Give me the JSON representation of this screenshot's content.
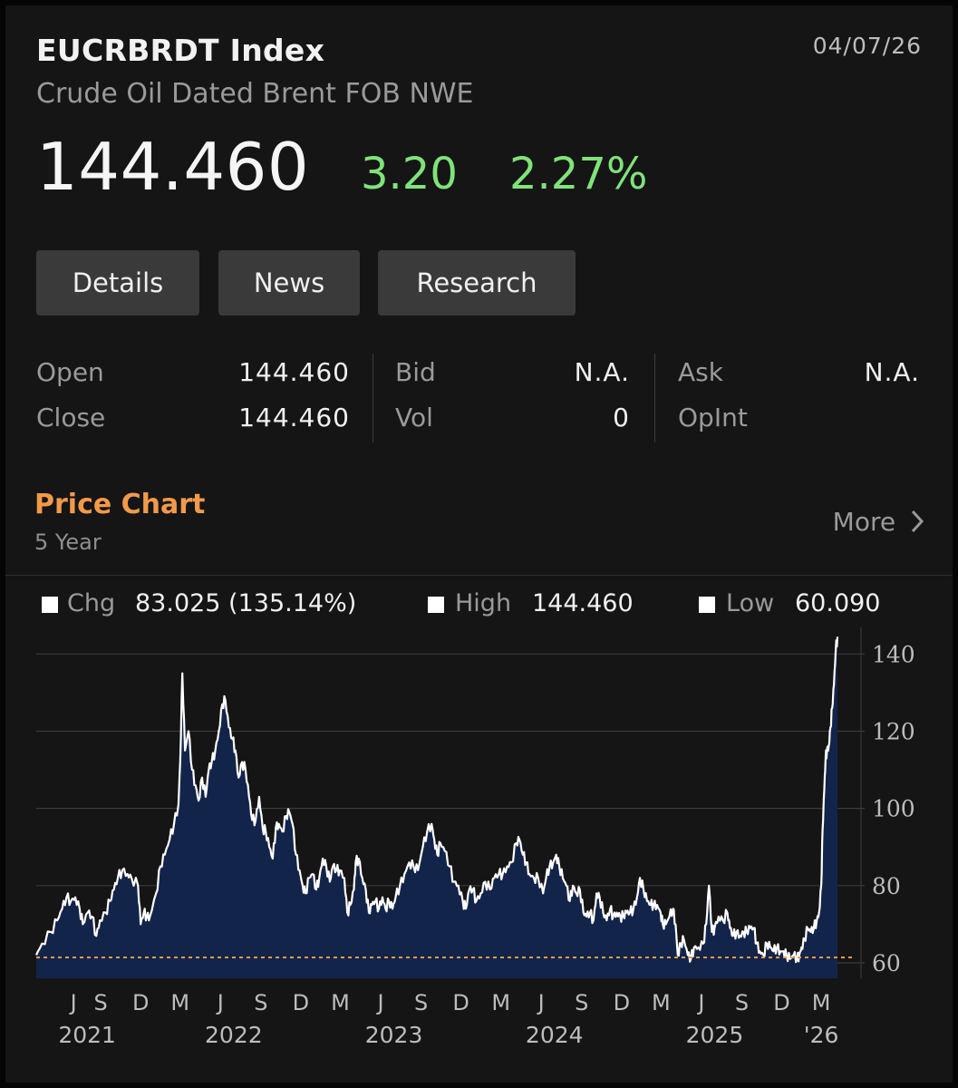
{
  "header": {
    "ticker": "EUCRBRDT Index",
    "date": "04/07/26",
    "description": "Crude Oil Dated Brent FOB NWE",
    "last_price": "144.460",
    "net_change": "3.20",
    "pct_change": "2.27%",
    "change_color": "#7fe37a"
  },
  "buttons": {
    "details": "Details",
    "news": "News",
    "research": "Research"
  },
  "quote": {
    "open_label": "Open",
    "open_value": "144.460",
    "close_label": "Close",
    "close_value": "144.460",
    "bid_label": "Bid",
    "bid_value": "N.A.",
    "vol_label": "Vol",
    "vol_value": "0",
    "ask_label": "Ask",
    "ask_value": "N.A.",
    "opint_label": "OpInt",
    "opint_value": ""
  },
  "price_chart": {
    "title": "Price Chart",
    "period": "5 Year",
    "more_label": "More",
    "accent_color": "#f29a4a"
  },
  "chart_stats": {
    "chg_label": "Chg",
    "chg_value": "83.025 (135.14%)",
    "high_label": "High",
    "high_value": "144.460",
    "low_label": "Low",
    "low_value": "60.090"
  },
  "chart_data": {
    "type": "area",
    "title": "",
    "xlabel": "",
    "ylabel": "",
    "ylim": [
      56,
      145
    ],
    "y_ticks": [
      140,
      120,
      100,
      80,
      60
    ],
    "grid": true,
    "baseline_value": 61.4,
    "colors": {
      "line": "#ffffff",
      "fill": "#13244a",
      "baseline": "#f29a4a"
    },
    "x_month_ticks": [
      {
        "label": "J",
        "date": "2021-07-01"
      },
      {
        "label": "S",
        "date": "2021-09-01"
      },
      {
        "label": "D",
        "date": "2021-12-01"
      },
      {
        "label": "M",
        "date": "2022-03-01"
      },
      {
        "label": "J",
        "date": "2022-06-01"
      },
      {
        "label": "S",
        "date": "2022-09-01"
      },
      {
        "label": "D",
        "date": "2022-12-01"
      },
      {
        "label": "M",
        "date": "2023-03-01"
      },
      {
        "label": "J",
        "date": "2023-06-01"
      },
      {
        "label": "S",
        "date": "2023-09-01"
      },
      {
        "label": "D",
        "date": "2023-12-01"
      },
      {
        "label": "M",
        "date": "2024-03-01"
      },
      {
        "label": "J",
        "date": "2024-06-01"
      },
      {
        "label": "S",
        "date": "2024-09-01"
      },
      {
        "label": "D",
        "date": "2024-12-01"
      },
      {
        "label": "M",
        "date": "2025-03-01"
      },
      {
        "label": "J",
        "date": "2025-06-01"
      },
      {
        "label": "S",
        "date": "2025-09-01"
      },
      {
        "label": "D",
        "date": "2025-12-01"
      },
      {
        "label": "M",
        "date": "2026-03-01"
      }
    ],
    "x_year_ticks": [
      {
        "label": "2021",
        "date": "2021-08-01"
      },
      {
        "label": "2022",
        "date": "2022-07-01"
      },
      {
        "label": "2023",
        "date": "2023-07-01"
      },
      {
        "label": "2024",
        "date": "2024-07-01"
      },
      {
        "label": "2025",
        "date": "2025-07-01"
      },
      {
        "label": "'26",
        "date": "2026-03-01"
      }
    ],
    "series": [
      {
        "points": [
          [
            "2021-04-07",
            62
          ],
          [
            "2021-04-20",
            65
          ],
          [
            "2021-05-10",
            68
          ],
          [
            "2021-05-25",
            71
          ],
          [
            "2021-06-05",
            74
          ],
          [
            "2021-06-15",
            77
          ],
          [
            "2021-06-25",
            76
          ],
          [
            "2021-07-05",
            77
          ],
          [
            "2021-07-15",
            74
          ],
          [
            "2021-07-22",
            70
          ],
          [
            "2021-08-02",
            73
          ],
          [
            "2021-08-12",
            72
          ],
          [
            "2021-08-22",
            67
          ],
          [
            "2021-08-30",
            71
          ],
          [
            "2021-09-12",
            73
          ],
          [
            "2021-09-22",
            76
          ],
          [
            "2021-10-01",
            79
          ],
          [
            "2021-10-10",
            82
          ],
          [
            "2021-10-20",
            84
          ],
          [
            "2021-11-01",
            83
          ],
          [
            "2021-11-10",
            82
          ],
          [
            "2021-11-25",
            80
          ],
          [
            "2021-12-01",
            70
          ],
          [
            "2021-12-08",
            73
          ],
          [
            "2021-12-15",
            72
          ],
          [
            "2021-12-22",
            72
          ],
          [
            "2022-01-05",
            78
          ],
          [
            "2022-01-15",
            85
          ],
          [
            "2022-01-25",
            88
          ],
          [
            "2022-02-05",
            92
          ],
          [
            "2022-02-15",
            96
          ],
          [
            "2022-02-25",
            101
          ],
          [
            "2022-03-01",
            112
          ],
          [
            "2022-03-06",
            135
          ],
          [
            "2022-03-12",
            115
          ],
          [
            "2022-03-20",
            120
          ],
          [
            "2022-03-28",
            110
          ],
          [
            "2022-04-05",
            106
          ],
          [
            "2022-04-12",
            102
          ],
          [
            "2022-04-20",
            108
          ],
          [
            "2022-04-28",
            103
          ],
          [
            "2022-05-05",
            110
          ],
          [
            "2022-05-12",
            112
          ],
          [
            "2022-05-20",
            115
          ],
          [
            "2022-05-28",
            120
          ],
          [
            "2022-06-05",
            127
          ],
          [
            "2022-06-12",
            128
          ],
          [
            "2022-06-20",
            121
          ],
          [
            "2022-06-28",
            118
          ],
          [
            "2022-07-05",
            115
          ],
          [
            "2022-07-12",
            108
          ],
          [
            "2022-07-20",
            112
          ],
          [
            "2022-07-28",
            110
          ],
          [
            "2022-08-05",
            103
          ],
          [
            "2022-08-12",
            97
          ],
          [
            "2022-08-20",
            97
          ],
          [
            "2022-08-28",
            103
          ],
          [
            "2022-09-05",
            95
          ],
          [
            "2022-09-12",
            94
          ],
          [
            "2022-09-20",
            90
          ],
          [
            "2022-09-28",
            87
          ],
          [
            "2022-10-05",
            95
          ],
          [
            "2022-10-12",
            96
          ],
          [
            "2022-10-20",
            94
          ],
          [
            "2022-10-28",
            98
          ],
          [
            "2022-11-05",
            99
          ],
          [
            "2022-11-12",
            96
          ],
          [
            "2022-11-20",
            88
          ],
          [
            "2022-11-28",
            84
          ],
          [
            "2022-12-05",
            80
          ],
          [
            "2022-12-12",
            78
          ],
          [
            "2022-12-20",
            82
          ],
          [
            "2022-12-28",
            83
          ],
          [
            "2023-01-05",
            79
          ],
          [
            "2023-01-12",
            82
          ],
          [
            "2023-01-20",
            87
          ],
          [
            "2023-01-28",
            85
          ],
          [
            "2023-02-05",
            81
          ],
          [
            "2023-02-12",
            85
          ],
          [
            "2023-02-20",
            84
          ],
          [
            "2023-02-28",
            84
          ],
          [
            "2023-03-10",
            82
          ],
          [
            "2023-03-17",
            73
          ],
          [
            "2023-03-24",
            75
          ],
          [
            "2023-04-01",
            79
          ],
          [
            "2023-04-05",
            86
          ],
          [
            "2023-04-12",
            87
          ],
          [
            "2023-04-20",
            82
          ],
          [
            "2023-04-28",
            79
          ],
          [
            "2023-05-05",
            73
          ],
          [
            "2023-05-12",
            75
          ],
          [
            "2023-05-20",
            76
          ],
          [
            "2023-05-28",
            74
          ],
          [
            "2023-06-05",
            77
          ],
          [
            "2023-06-12",
            74
          ],
          [
            "2023-06-20",
            76
          ],
          [
            "2023-06-28",
            74
          ],
          [
            "2023-07-05",
            77
          ],
          [
            "2023-07-15",
            80
          ],
          [
            "2023-07-25",
            83
          ],
          [
            "2023-08-05",
            86
          ],
          [
            "2023-08-15",
            85
          ],
          [
            "2023-08-25",
            84
          ],
          [
            "2023-09-05",
            90
          ],
          [
            "2023-09-15",
            94
          ],
          [
            "2023-09-25",
            96
          ],
          [
            "2023-10-01",
            92
          ],
          [
            "2023-10-08",
            88
          ],
          [
            "2023-10-15",
            91
          ],
          [
            "2023-10-25",
            89
          ],
          [
            "2023-11-05",
            85
          ],
          [
            "2023-11-15",
            81
          ],
          [
            "2023-11-25",
            80
          ],
          [
            "2023-12-05",
            76
          ],
          [
            "2023-12-12",
            74
          ],
          [
            "2023-12-20",
            79
          ],
          [
            "2023-12-28",
            79
          ],
          [
            "2024-01-05",
            76
          ],
          [
            "2024-01-15",
            78
          ],
          [
            "2024-01-25",
            81
          ],
          [
            "2024-02-05",
            79
          ],
          [
            "2024-02-15",
            82
          ],
          [
            "2024-02-25",
            83
          ],
          [
            "2024-03-05",
            83
          ],
          [
            "2024-03-15",
            85
          ],
          [
            "2024-03-25",
            86
          ],
          [
            "2024-04-05",
            91
          ],
          [
            "2024-04-12",
            92
          ],
          [
            "2024-04-20",
            88
          ],
          [
            "2024-04-28",
            86
          ],
          [
            "2024-05-05",
            83
          ],
          [
            "2024-05-15",
            82
          ],
          [
            "2024-05-25",
            82
          ],
          [
            "2024-06-05",
            78
          ],
          [
            "2024-06-12",
            82
          ],
          [
            "2024-06-20",
            85
          ],
          [
            "2024-06-28",
            86
          ],
          [
            "2024-07-05",
            88
          ],
          [
            "2024-07-12",
            85
          ],
          [
            "2024-07-20",
            82
          ],
          [
            "2024-07-28",
            80
          ],
          [
            "2024-08-05",
            76
          ],
          [
            "2024-08-12",
            80
          ],
          [
            "2024-08-20",
            78
          ],
          [
            "2024-08-28",
            79
          ],
          [
            "2024-09-05",
            73
          ],
          [
            "2024-09-12",
            72
          ],
          [
            "2024-09-20",
            73
          ],
          [
            "2024-09-28",
            71
          ],
          [
            "2024-10-05",
            78
          ],
          [
            "2024-10-12",
            77
          ],
          [
            "2024-10-20",
            73
          ],
          [
            "2024-10-28",
            71
          ],
          [
            "2024-11-05",
            74
          ],
          [
            "2024-11-12",
            72
          ],
          [
            "2024-11-20",
            73
          ],
          [
            "2024-11-28",
            72
          ],
          [
            "2024-12-05",
            72
          ],
          [
            "2024-12-12",
            73
          ],
          [
            "2024-12-20",
            73
          ],
          [
            "2024-12-28",
            74
          ],
          [
            "2025-01-05",
            77
          ],
          [
            "2025-01-12",
            82
          ],
          [
            "2025-01-20",
            79
          ],
          [
            "2025-01-28",
            76
          ],
          [
            "2025-02-05",
            75
          ],
          [
            "2025-02-12",
            75
          ],
          [
            "2025-02-20",
            75
          ],
          [
            "2025-02-28",
            73
          ],
          [
            "2025-03-05",
            70
          ],
          [
            "2025-03-12",
            70
          ],
          [
            "2025-03-20",
            72
          ],
          [
            "2025-03-28",
            74
          ],
          [
            "2025-04-03",
            70
          ],
          [
            "2025-04-08",
            62
          ],
          [
            "2025-04-15",
            65
          ],
          [
            "2025-04-22",
            66
          ],
          [
            "2025-05-01",
            62
          ],
          [
            "2025-05-08",
            61
          ],
          [
            "2025-05-15",
            64
          ],
          [
            "2025-05-25",
            64
          ],
          [
            "2025-06-05",
            65
          ],
          [
            "2025-06-12",
            70
          ],
          [
            "2025-06-18",
            80
          ],
          [
            "2025-06-25",
            68
          ],
          [
            "2025-07-01",
            69
          ],
          [
            "2025-07-10",
            72
          ],
          [
            "2025-07-20",
            71
          ],
          [
            "2025-07-30",
            73
          ],
          [
            "2025-08-05",
            69
          ],
          [
            "2025-08-12",
            67
          ],
          [
            "2025-08-20",
            68
          ],
          [
            "2025-08-28",
            67
          ],
          [
            "2025-09-05",
            68
          ],
          [
            "2025-09-12",
            68
          ],
          [
            "2025-09-20",
            69
          ],
          [
            "2025-09-28",
            69
          ],
          [
            "2025-10-05",
            65
          ],
          [
            "2025-10-12",
            63
          ],
          [
            "2025-10-20",
            62
          ],
          [
            "2025-10-28",
            65
          ],
          [
            "2025-11-05",
            64
          ],
          [
            "2025-11-12",
            63
          ],
          [
            "2025-11-20",
            64
          ],
          [
            "2025-11-28",
            63
          ],
          [
            "2025-12-05",
            63
          ],
          [
            "2025-12-12",
            62
          ],
          [
            "2025-12-20",
            61
          ],
          [
            "2025-12-28",
            62
          ],
          [
            "2026-01-05",
            61
          ],
          [
            "2026-01-10",
            62
          ],
          [
            "2026-01-15",
            64
          ],
          [
            "2026-01-22",
            66
          ],
          [
            "2026-01-29",
            69
          ],
          [
            "2026-02-05",
            68
          ],
          [
            "2026-02-12",
            69
          ],
          [
            "2026-02-19",
            71
          ],
          [
            "2026-02-24",
            73
          ],
          [
            "2026-03-01",
            80
          ],
          [
            "2026-03-04",
            94
          ],
          [
            "2026-03-08",
            105
          ],
          [
            "2026-03-11",
            113
          ],
          [
            "2026-03-14",
            115
          ],
          [
            "2026-03-18",
            116
          ],
          [
            "2026-03-22",
            121
          ],
          [
            "2026-03-26",
            126
          ],
          [
            "2026-03-30",
            132
          ],
          [
            "2026-04-03",
            141
          ],
          [
            "2026-04-07",
            144.46
          ]
        ]
      }
    ]
  }
}
